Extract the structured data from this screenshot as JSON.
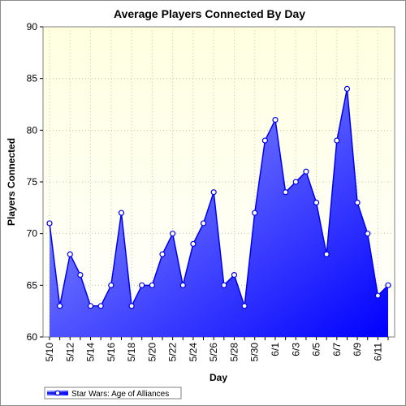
{
  "chart_data": {
    "type": "area",
    "title": "Average Players Connected By Day",
    "xlabel": "Day",
    "ylabel": "Players Connected",
    "ylim": [
      60,
      90
    ],
    "yticks": [
      60,
      65,
      70,
      75,
      80,
      85,
      90
    ],
    "x": [
      "5/10",
      "5/11",
      "5/12",
      "5/13",
      "5/14",
      "5/15",
      "5/16",
      "5/17",
      "5/18",
      "5/19",
      "5/20",
      "5/21",
      "5/22",
      "5/23",
      "5/24",
      "5/25",
      "5/26",
      "5/27",
      "5/28",
      "5/29",
      "5/30",
      "5/31",
      "6/1",
      "6/2",
      "6/3",
      "6/4",
      "6/5",
      "6/6",
      "6/7",
      "6/8",
      "6/9",
      "6/10",
      "6/11",
      "6/12"
    ],
    "x_tick_labels": [
      "5/10",
      "5/12",
      "5/14",
      "5/16",
      "5/18",
      "5/20",
      "5/22",
      "5/24",
      "5/26",
      "5/28",
      "5/30",
      "6/1",
      "6/3",
      "6/5",
      "6/7",
      "6/9",
      "6/11"
    ],
    "series": [
      {
        "name": "Star Wars: Age of Alliances",
        "values": [
          71,
          63,
          68,
          66,
          63,
          63,
          65,
          72,
          63,
          65,
          65,
          68,
          70,
          65,
          69,
          71,
          74,
          65,
          66,
          63,
          72,
          79,
          81,
          74,
          75,
          76,
          73,
          68,
          79,
          84,
          73,
          70,
          64,
          65
        ]
      }
    ],
    "grid": true,
    "legend": "bottom-left",
    "colors": {
      "plot_background_top": "#ffffe0",
      "plot_background_bottom": "#ffffff",
      "area_top": "#a0a8ff",
      "area_bottom": "#0000ff",
      "line": "#0000ee",
      "marker_fill": "#ffffff",
      "grid": "#c8c8a0"
    }
  }
}
